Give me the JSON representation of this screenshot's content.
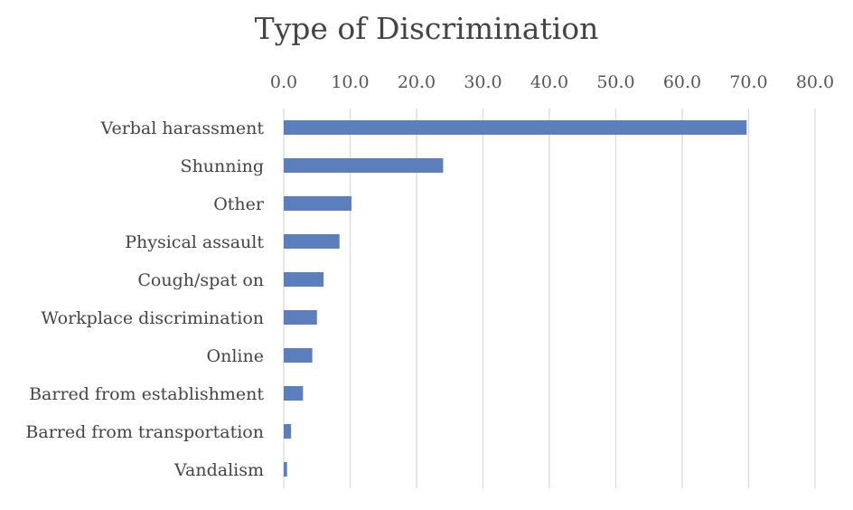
{
  "chart_data": {
    "type": "bar",
    "orientation": "horizontal",
    "title": "Type of Discrimination",
    "categories": [
      "Verbal harassment",
      "Shunning",
      "Other",
      "Physical assault",
      "Cough/spat on",
      "Workplace discrimination",
      "Online",
      "Barred from establishment",
      "Barred from transportation",
      "Vandalism"
    ],
    "values": [
      69.7,
      24.0,
      10.2,
      8.4,
      6.0,
      5.0,
      4.3,
      2.9,
      1.1,
      0.5
    ],
    "xlim": [
      0,
      80
    ],
    "x_ticks": [
      "0.0",
      "10.0",
      "20.0",
      "30.0",
      "40.0",
      "50.0",
      "60.0",
      "70.0",
      "80.0"
    ],
    "x_axis_position": "top",
    "grid": true,
    "bar_color": "#5b7fbd",
    "grid_color": "#d9d9d9"
  }
}
